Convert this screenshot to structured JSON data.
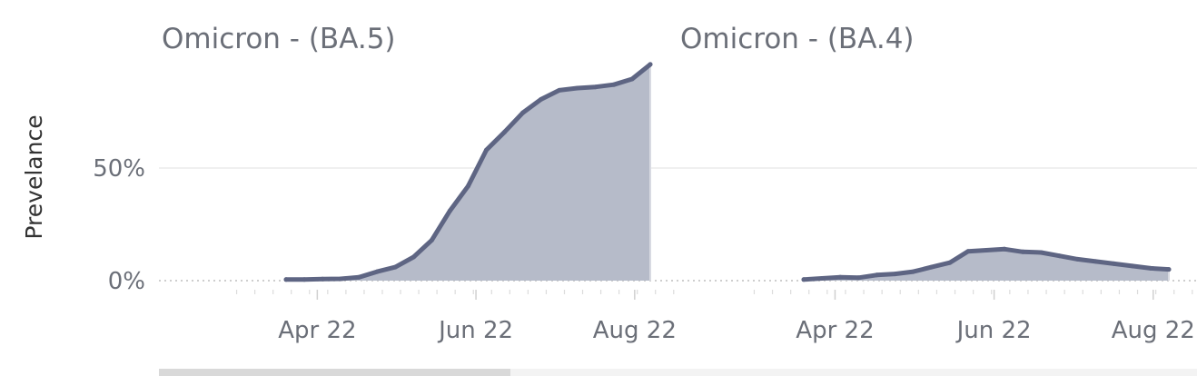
{
  "chart_data": {
    "type": "area",
    "ylabel": "Prevelance",
    "yticks": [
      {
        "value": 0,
        "label": "0%"
      },
      {
        "value": 50,
        "label": "50%"
      }
    ],
    "ylim": [
      -3,
      110
    ],
    "x_start": "2022-03-01",
    "x_end": "2022-09-01",
    "xticks": [
      {
        "date": "2022-04-01",
        "label": "Apr 22"
      },
      {
        "date": "2022-06-01",
        "label": "Jun 22"
      },
      {
        "date": "2022-08-01",
        "label": "Aug 22"
      }
    ],
    "grid": "horizontal",
    "panels": [
      {
        "title": "Omicron - (BA.5)",
        "x": [
          "2022-03-20",
          "2022-03-27",
          "2022-04-03",
          "2022-04-10",
          "2022-04-17",
          "2022-04-24",
          "2022-05-01",
          "2022-05-08",
          "2022-05-15",
          "2022-05-22",
          "2022-05-29",
          "2022-06-05",
          "2022-06-12",
          "2022-06-19",
          "2022-06-26",
          "2022-07-03",
          "2022-07-10",
          "2022-07-17",
          "2022-07-24",
          "2022-07-31",
          "2022-08-07"
        ],
        "y": [
          0.5,
          0.5,
          0.7,
          0.8,
          1.5,
          4,
          6,
          10.5,
          18,
          31,
          42,
          58,
          66,
          74.5,
          80.5,
          84.5,
          85.5,
          86,
          87,
          89.5,
          96
        ]
      },
      {
        "title": "Omicron - (BA.4)",
        "x": [
          "2022-03-20",
          "2022-03-27",
          "2022-04-03",
          "2022-04-10",
          "2022-04-17",
          "2022-04-24",
          "2022-05-01",
          "2022-05-08",
          "2022-05-15",
          "2022-05-22",
          "2022-05-29",
          "2022-06-05",
          "2022-06-12",
          "2022-06-19",
          "2022-06-26",
          "2022-07-03",
          "2022-07-10",
          "2022-07-17",
          "2022-07-24",
          "2022-07-31",
          "2022-08-07"
        ],
        "y": [
          0.5,
          1,
          1.5,
          1.3,
          2.5,
          3,
          4,
          6,
          8,
          13,
          13.5,
          14,
          12.8,
          12.5,
          11,
          9.5,
          8.5,
          7.5,
          6.5,
          5.5,
          5
        ]
      }
    ]
  },
  "colors": {
    "area": "#b6bbc9",
    "line": "#5e6583"
  }
}
